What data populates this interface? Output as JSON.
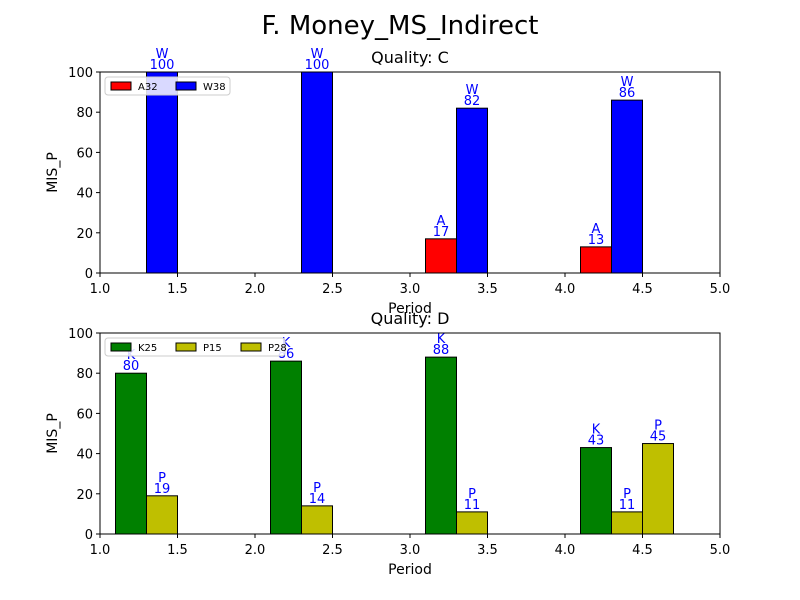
{
  "figure": {
    "title": "F. Money_MS_Indirect"
  },
  "chart_data": [
    {
      "type": "bar",
      "title": "Quality: C",
      "xlabel": "Period",
      "ylabel": "MIS_P",
      "xlim": [
        1.0,
        5.0
      ],
      "ylim": [
        0,
        100
      ],
      "xticks": [
        "1.0",
        "1.5",
        "2.0",
        "2.5",
        "3.0",
        "3.5",
        "4.0",
        "4.5",
        "5.0"
      ],
      "yticks": [
        "0",
        "20",
        "40",
        "60",
        "80",
        "100"
      ],
      "legend_position": "upper-left",
      "series": [
        {
          "name": "A32",
          "color": "#ff0000",
          "points": [
            {
              "x": 3.2,
              "value": 17,
              "value_label": "17",
              "letter": "A"
            },
            {
              "x": 4.2,
              "value": 13,
              "value_label": "13",
              "letter": "A"
            }
          ]
        },
        {
          "name": "W38",
          "color": "#0000ff",
          "points": [
            {
              "x": 1.4,
              "value": 100,
              "value_label": "100",
              "letter": "W"
            },
            {
              "x": 2.4,
              "value": 100,
              "value_label": "100",
              "letter": "W"
            },
            {
              "x": 3.4,
              "value": 82,
              "value_label": "82",
              "letter": "W"
            },
            {
              "x": 4.4,
              "value": 86,
              "value_label": "86",
              "letter": "W"
            }
          ]
        }
      ]
    },
    {
      "type": "bar",
      "title": "Quality: D",
      "xlabel": "Period",
      "ylabel": "MIS_P",
      "xlim": [
        1.0,
        5.0
      ],
      "ylim": [
        0,
        100
      ],
      "xticks": [
        "1.0",
        "1.5",
        "2.0",
        "2.5",
        "3.0",
        "3.5",
        "4.0",
        "4.5",
        "5.0"
      ],
      "yticks": [
        "0",
        "20",
        "40",
        "60",
        "80",
        "100"
      ],
      "legend_position": "upper-left",
      "series": [
        {
          "name": "K25",
          "color": "#008000",
          "points": [
            {
              "x": 1.2,
              "value": 80,
              "value_label": "80",
              "letter": "K"
            },
            {
              "x": 2.2,
              "value": 86,
              "value_label": "86",
              "letter": "K"
            },
            {
              "x": 3.2,
              "value": 88,
              "value_label": "88",
              "letter": "K"
            },
            {
              "x": 4.2,
              "value": 43,
              "value_label": "43",
              "letter": "K"
            }
          ]
        },
        {
          "name": "P15",
          "color": "#bfbf00",
          "points": [
            {
              "x": 1.4,
              "value": 19,
              "value_label": "19",
              "letter": "P"
            },
            {
              "x": 2.4,
              "value": 14,
              "value_label": "14",
              "letter": "P"
            },
            {
              "x": 3.4,
              "value": 11,
              "value_label": "11",
              "letter": "P"
            },
            {
              "x": 4.4,
              "value": 11,
              "value_label": "11",
              "letter": "P"
            }
          ]
        },
        {
          "name": "P28",
          "color": "#bfbf00",
          "points": [
            {
              "x": 4.6,
              "value": 45,
              "value_label": "45",
              "letter": "P"
            }
          ]
        }
      ]
    }
  ]
}
